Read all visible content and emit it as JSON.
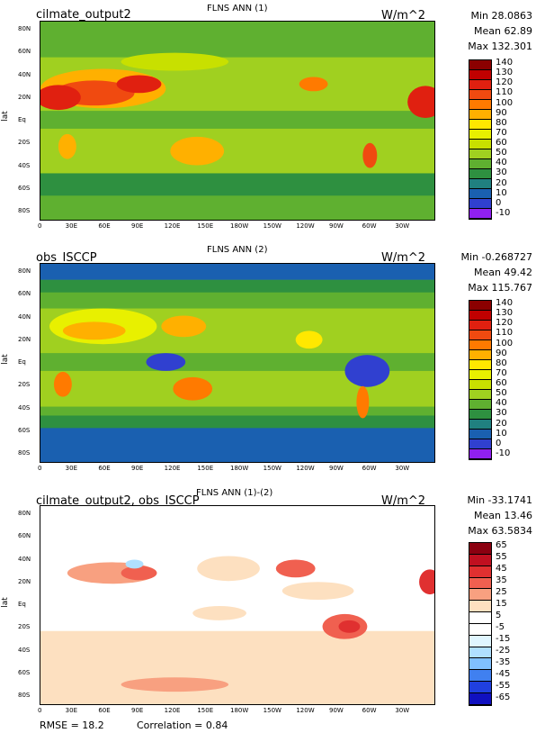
{
  "panels": [
    {
      "case_title": "cilmate_output2",
      "var_title": "FLNS ANN (1)",
      "units": "W/m^2",
      "stats": {
        "min": "Min 28.0863",
        "mean": "Mean 62.89",
        "max": "Max 132.301"
      },
      "ylabel": "lat",
      "lat_ticks": [
        "80N",
        "60N",
        "40N",
        "20N",
        "Eq",
        "20S",
        "40S",
        "60S",
        "80S"
      ],
      "lon_ticks": [
        "0",
        "30E",
        "60E",
        "90E",
        "120E",
        "150E",
        "180W",
        "150W",
        "120W",
        "90W",
        "60W",
        "30W"
      ],
      "colorbar": {
        "labels": [
          "140",
          "130",
          "120",
          "110",
          "100",
          "90",
          "80",
          "70",
          "60",
          "50",
          "40",
          "30",
          "20",
          "10",
          "0",
          "-10"
        ],
        "colors": [
          "#8b0000",
          "#c00000",
          "#e02010",
          "#f04a10",
          "#ff7a00",
          "#ffb000",
          "#ffe800",
          "#e8f000",
          "#c8e000",
          "#a0d020",
          "#5fb030",
          "#2e9040",
          "#208080",
          "#1a60b0",
          "#3040d0",
          "#9020f0"
        ]
      }
    },
    {
      "case_title": "obs_ISCCP",
      "var_title": "FLNS ANN (2)",
      "units": "W/m^2",
      "stats": {
        "min": "Min -0.268727",
        "mean": "Mean 49.42",
        "max": "Max 115.767"
      },
      "ylabel": "lat",
      "lat_ticks": [
        "80N",
        "60N",
        "40N",
        "20N",
        "Eq",
        "20S",
        "40S",
        "60S",
        "80S"
      ],
      "lon_ticks": [
        "0",
        "30E",
        "60E",
        "90E",
        "120E",
        "150E",
        "180W",
        "150W",
        "120W",
        "90W",
        "60W",
        "30W"
      ],
      "colorbar": {
        "labels": [
          "140",
          "130",
          "120",
          "110",
          "100",
          "90",
          "80",
          "70",
          "60",
          "50",
          "40",
          "30",
          "20",
          "10",
          "0",
          "-10"
        ],
        "colors": [
          "#8b0000",
          "#c00000",
          "#e02010",
          "#f04a10",
          "#ff7a00",
          "#ffb000",
          "#ffe800",
          "#e8f000",
          "#c8e000",
          "#a0d020",
          "#5fb030",
          "#2e9040",
          "#208080",
          "#1a60b0",
          "#3040d0",
          "#9020f0"
        ]
      }
    },
    {
      "case_title": "cilmate_output2, obs_ISCCP",
      "var_title": "FLNS ANN (1)-(2)",
      "units": "W/m^2",
      "stats": {
        "min": "Min -33.1741",
        "mean": "Mean 13.46",
        "max": "Max 63.5834"
      },
      "ylabel": "lat",
      "lat_ticks": [
        "80N",
        "60N",
        "40N",
        "20N",
        "Eq",
        "20S",
        "40S",
        "60S",
        "80S"
      ],
      "lon_ticks": [
        "0",
        "30E",
        "60E",
        "90E",
        "120E",
        "150E",
        "180W",
        "150W",
        "120W",
        "90W",
        "60W",
        "30W"
      ],
      "colorbar": {
        "labels": [
          "65",
          "55",
          "45",
          "35",
          "25",
          "15",
          "5",
          "-5",
          "-15",
          "-25",
          "-35",
          "-45",
          "-55",
          "-65"
        ],
        "colors": [
          "#8b0010",
          "#c01020",
          "#e03030",
          "#f06050",
          "#f8a080",
          "#fde0c0",
          "#ffffff",
          "#ffffff",
          "#e0f6ff",
          "#b0e0ff",
          "#80c0ff",
          "#4080f0",
          "#2040e0",
          "#1010c0"
        ]
      }
    }
  ],
  "footer": {
    "rmse": "RMSE = 18.2",
    "correlation": "Correlation = 0.84"
  },
  "chart_data": [
    {
      "type": "heatmap",
      "title": "FLNS ANN (1)",
      "subtitle": "cilmate_output2",
      "ylabel": "lat",
      "units": "W/m^2",
      "x_ticks": [
        "0",
        "30E",
        "60E",
        "90E",
        "120E",
        "150E",
        "180W",
        "150W",
        "120W",
        "90W",
        "60W",
        "30W"
      ],
      "y_ticks": [
        "80N",
        "60N",
        "40N",
        "20N",
        "Eq",
        "20S",
        "40S",
        "60S",
        "80S"
      ],
      "stats": {
        "min": 28.0863,
        "mean": 62.89,
        "max": 132.301
      },
      "levels": [
        -10,
        0,
        10,
        20,
        30,
        40,
        50,
        60,
        70,
        80,
        90,
        100,
        110,
        120,
        130,
        140
      ]
    },
    {
      "type": "heatmap",
      "title": "FLNS ANN (2)",
      "subtitle": "obs_ISCCP",
      "ylabel": "lat",
      "units": "W/m^2",
      "x_ticks": [
        "0",
        "30E",
        "60E",
        "90E",
        "120E",
        "150E",
        "180W",
        "150W",
        "120W",
        "90W",
        "60W",
        "30W"
      ],
      "y_ticks": [
        "80N",
        "60N",
        "40N",
        "20N",
        "Eq",
        "20S",
        "40S",
        "60S",
        "80S"
      ],
      "stats": {
        "min": -0.268727,
        "mean": 49.42,
        "max": 115.767
      },
      "levels": [
        -10,
        0,
        10,
        20,
        30,
        40,
        50,
        60,
        70,
        80,
        90,
        100,
        110,
        120,
        130,
        140
      ]
    },
    {
      "type": "heatmap",
      "title": "FLNS ANN (1)-(2)",
      "subtitle": "cilmate_output2, obs_ISCCP",
      "ylabel": "lat",
      "units": "W/m^2",
      "x_ticks": [
        "0",
        "30E",
        "60E",
        "90E",
        "120E",
        "150E",
        "180W",
        "150W",
        "120W",
        "90W",
        "60W",
        "30W"
      ],
      "y_ticks": [
        "80N",
        "60N",
        "40N",
        "20N",
        "Eq",
        "20S",
        "40S",
        "60S",
        "80S"
      ],
      "stats": {
        "min": -33.1741,
        "mean": 13.46,
        "max": 63.5834
      },
      "rmse": 18.2,
      "correlation": 0.84,
      "levels": [
        -65,
        -55,
        -45,
        -35,
        -25,
        -15,
        -5,
        5,
        15,
        25,
        35,
        45,
        55,
        65
      ]
    }
  ]
}
